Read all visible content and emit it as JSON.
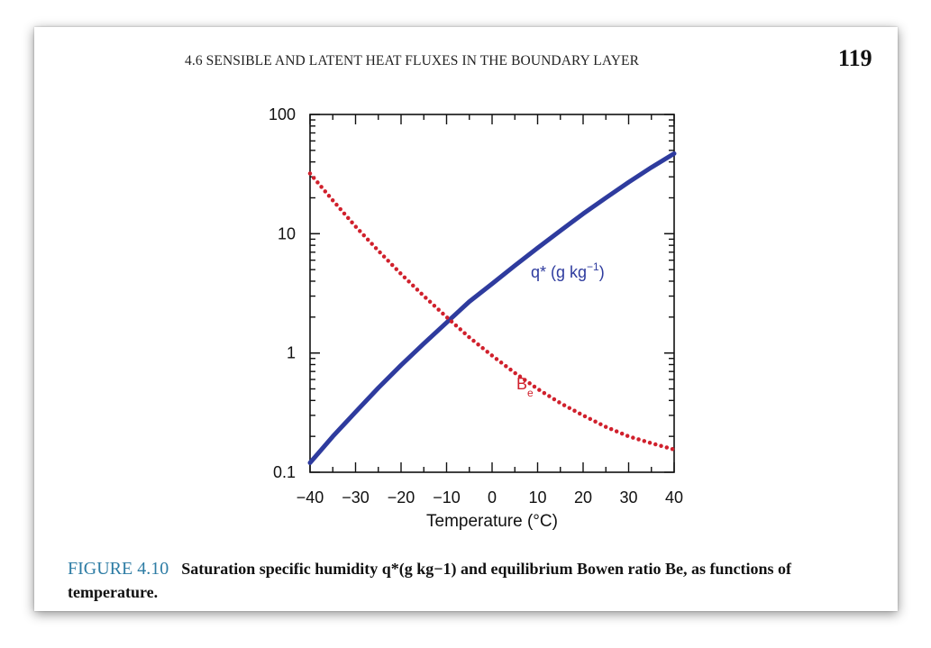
{
  "header": {
    "running_head": "4.6 SENSIBLE AND LATENT HEAT FLUXES IN THE BOUNDARY LAYER",
    "page_number": "119"
  },
  "caption": {
    "label": "FIGURE 4.10",
    "text": "Saturation specific humidity q*(g kg−1) and equilibrium Bowen ratio Be, as functions of temperature."
  },
  "colors": {
    "q_series": "#2e3b9e",
    "be_series": "#d0202c"
  },
  "chart_data": {
    "type": "line",
    "title": "",
    "xlabel": "Temperature (°C)",
    "ylabel": "",
    "xlim": [
      -40,
      40
    ],
    "ylim": [
      0.1,
      100
    ],
    "yscale": "log",
    "x_ticks": [
      -40,
      -30,
      -20,
      -10,
      0,
      10,
      20,
      30,
      40
    ],
    "x_tick_labels": [
      "−40",
      "−30",
      "−20",
      "−10",
      "0",
      "10",
      "20",
      "30",
      "40"
    ],
    "y_ticks": [
      0.1,
      1,
      10,
      100
    ],
    "y_tick_labels": [
      "0.1",
      "1",
      "10",
      "100"
    ],
    "series": [
      {
        "name": "q* (g kg−1)",
        "label_main": "q* (g kg",
        "label_sup": "−1",
        "label_end": ")",
        "style": "solid",
        "x": [
          -40,
          -35,
          -30,
          -25,
          -20,
          -15,
          -10,
          -5,
          0,
          5,
          10,
          15,
          20,
          25,
          30,
          35,
          40
        ],
        "values": [
          0.12,
          0.2,
          0.32,
          0.51,
          0.79,
          1.2,
          1.8,
          2.7,
          3.8,
          5.4,
          7.6,
          10.6,
          14.7,
          20.0,
          27.0,
          36.0,
          47.0
        ]
      },
      {
        "name": "Be",
        "label_main": "B",
        "label_sub": "e",
        "style": "dotted",
        "x": [
          -40,
          -35,
          -30,
          -25,
          -20,
          -15,
          -10,
          -5,
          0,
          5,
          10,
          15,
          20,
          25,
          30,
          35,
          40
        ],
        "values": [
          32.0,
          19.0,
          11.5,
          7.2,
          4.6,
          3.0,
          2.0,
          1.35,
          0.95,
          0.68,
          0.5,
          0.38,
          0.3,
          0.24,
          0.2,
          0.175,
          0.155
        ]
      }
    ],
    "grid": false
  }
}
